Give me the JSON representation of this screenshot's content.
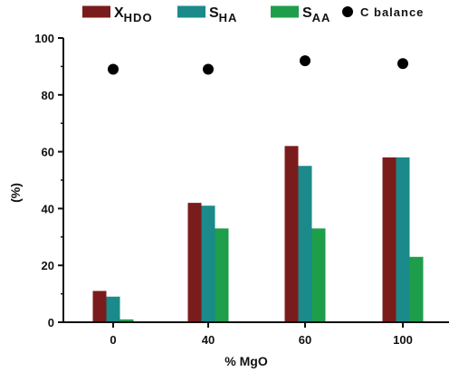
{
  "chart_data": {
    "type": "bar",
    "categories": [
      "0",
      "40",
      "60",
      "100"
    ],
    "xlabel": "% MgO",
    "ylabel": "(%)",
    "ylim": [
      0,
      100
    ],
    "yticks": [
      "0",
      "20",
      "40",
      "60",
      "80",
      "100"
    ],
    "grid": false,
    "legend_position": "top",
    "series": [
      {
        "name_main": "X",
        "name_sub": "HDO",
        "color": "#7b1c1c",
        "values": [
          11,
          42,
          62,
          58
        ]
      },
      {
        "name_main": "S",
        "name_sub": "HA",
        "color": "#1a8a8a",
        "values": [
          9,
          41,
          55,
          58
        ]
      },
      {
        "name_main": "S",
        "name_sub": "AA",
        "color": "#1e9e4a",
        "values": [
          1,
          33,
          33,
          23
        ]
      }
    ],
    "scatter_series": {
      "name": "C balance",
      "color": "#000000",
      "values": [
        89,
        89,
        92,
        91
      ]
    }
  }
}
